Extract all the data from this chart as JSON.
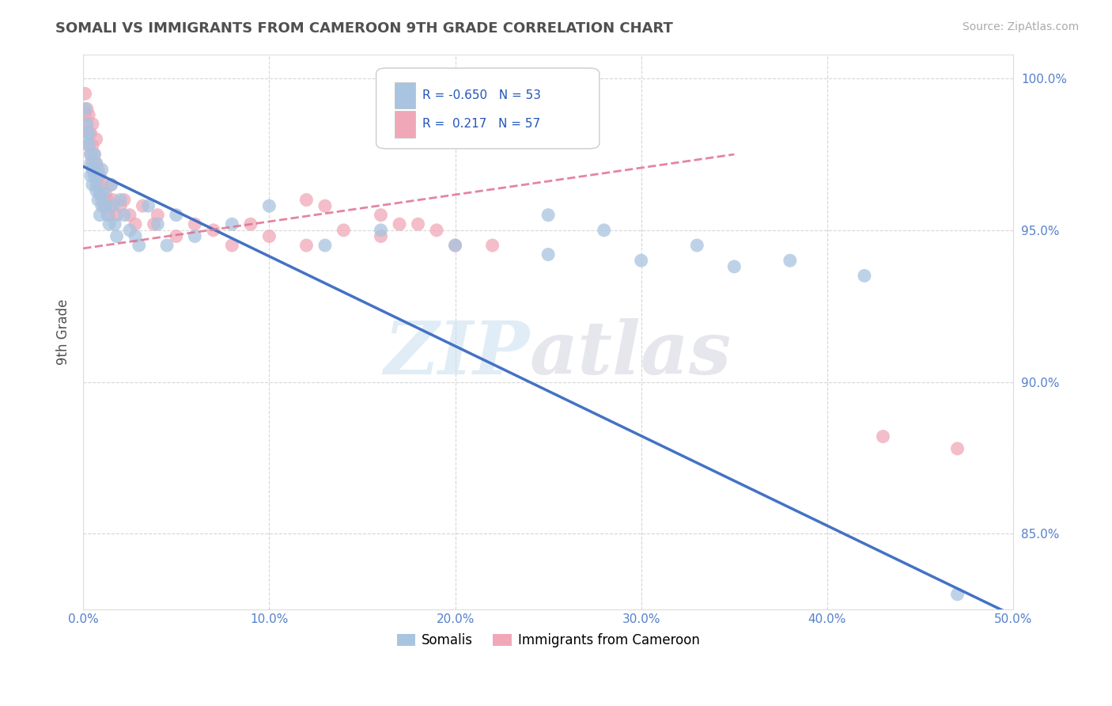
{
  "title": "SOMALI VS IMMIGRANTS FROM CAMEROON 9TH GRADE CORRELATION CHART",
  "source": "Source: ZipAtlas.com",
  "ylabel": "9th Grade",
  "xlim": [
    0.0,
    0.5
  ],
  "ylim": [
    0.825,
    1.008
  ],
  "yticks": [
    0.85,
    0.9,
    0.95,
    1.0
  ],
  "ytick_labels": [
    "85.0%",
    "90.0%",
    "95.0%",
    "100.0%"
  ],
  "xticks": [
    0.0,
    0.1,
    0.2,
    0.3,
    0.4,
    0.5
  ],
  "xtick_labels": [
    "0.0%",
    "10.0%",
    "20.0%",
    "30.0%",
    "40.0%",
    "50.0%"
  ],
  "somali_color": "#a8c4e0",
  "cameroon_color": "#f0a8b8",
  "somali_R": -0.65,
  "somali_N": 53,
  "cameroon_R": 0.217,
  "cameroon_N": 57,
  "background_color": "#ffffff",
  "grid_color": "#cccccc",
  "title_color": "#505050",
  "tick_color": "#5580cc",
  "somali_line_color": "#4472c4",
  "cameroon_line_color": "#e07090",
  "somali_x": [
    0.001,
    0.002,
    0.002,
    0.003,
    0.003,
    0.004,
    0.004,
    0.004,
    0.005,
    0.005,
    0.006,
    0.006,
    0.007,
    0.007,
    0.007,
    0.008,
    0.008,
    0.009,
    0.009,
    0.01,
    0.01,
    0.011,
    0.012,
    0.013,
    0.014,
    0.015,
    0.016,
    0.017,
    0.018,
    0.02,
    0.022,
    0.025,
    0.028,
    0.03,
    0.035,
    0.04,
    0.045,
    0.05,
    0.06,
    0.08,
    0.1,
    0.13,
    0.16,
    0.2,
    0.25,
    0.3,
    0.35,
    0.25,
    0.28,
    0.33,
    0.38,
    0.42,
    0.47
  ],
  "somali_y": [
    0.99,
    0.985,
    0.98,
    0.978,
    0.982,
    0.975,
    0.972,
    0.968,
    0.97,
    0.965,
    0.975,
    0.968,
    0.963,
    0.972,
    0.965,
    0.96,
    0.968,
    0.962,
    0.955,
    0.958,
    0.97,
    0.962,
    0.958,
    0.955,
    0.952,
    0.965,
    0.958,
    0.952,
    0.948,
    0.96,
    0.955,
    0.95,
    0.948,
    0.945,
    0.958,
    0.952,
    0.945,
    0.955,
    0.948,
    0.952,
    0.958,
    0.945,
    0.95,
    0.945,
    0.942,
    0.94,
    0.938,
    0.955,
    0.95,
    0.945,
    0.94,
    0.935,
    0.83
  ],
  "cameroon_x": [
    0.001,
    0.001,
    0.002,
    0.002,
    0.003,
    0.003,
    0.003,
    0.004,
    0.004,
    0.005,
    0.005,
    0.005,
    0.006,
    0.006,
    0.007,
    0.007,
    0.007,
    0.008,
    0.008,
    0.009,
    0.009,
    0.01,
    0.01,
    0.011,
    0.012,
    0.013,
    0.014,
    0.015,
    0.015,
    0.016,
    0.018,
    0.02,
    0.022,
    0.025,
    0.028,
    0.032,
    0.038,
    0.04,
    0.05,
    0.06,
    0.07,
    0.08,
    0.09,
    0.1,
    0.12,
    0.14,
    0.16,
    0.18,
    0.2,
    0.13,
    0.16,
    0.19,
    0.22,
    0.17,
    0.12,
    0.43,
    0.47
  ],
  "cameroon_y": [
    0.995,
    0.988,
    0.985,
    0.99,
    0.982,
    0.978,
    0.988,
    0.975,
    0.982,
    0.972,
    0.978,
    0.985,
    0.97,
    0.975,
    0.968,
    0.972,
    0.98,
    0.965,
    0.97,
    0.962,
    0.968,
    0.96,
    0.965,
    0.958,
    0.962,
    0.96,
    0.955,
    0.958,
    0.965,
    0.96,
    0.955,
    0.958,
    0.96,
    0.955,
    0.952,
    0.958,
    0.952,
    0.955,
    0.948,
    0.952,
    0.95,
    0.945,
    0.952,
    0.948,
    0.945,
    0.95,
    0.948,
    0.952,
    0.945,
    0.958,
    0.955,
    0.95,
    0.945,
    0.952,
    0.96,
    0.882,
    0.878
  ],
  "somali_trendline_x0": 0.0,
  "somali_trendline_x1": 0.5,
  "somali_trendline_y0": 0.971,
  "somali_trendline_y1": 0.823,
  "cameroon_trendline_x0": 0.0,
  "cameroon_trendline_x1": 0.35,
  "cameroon_trendline_y0": 0.944,
  "cameroon_trendline_y1": 0.975
}
